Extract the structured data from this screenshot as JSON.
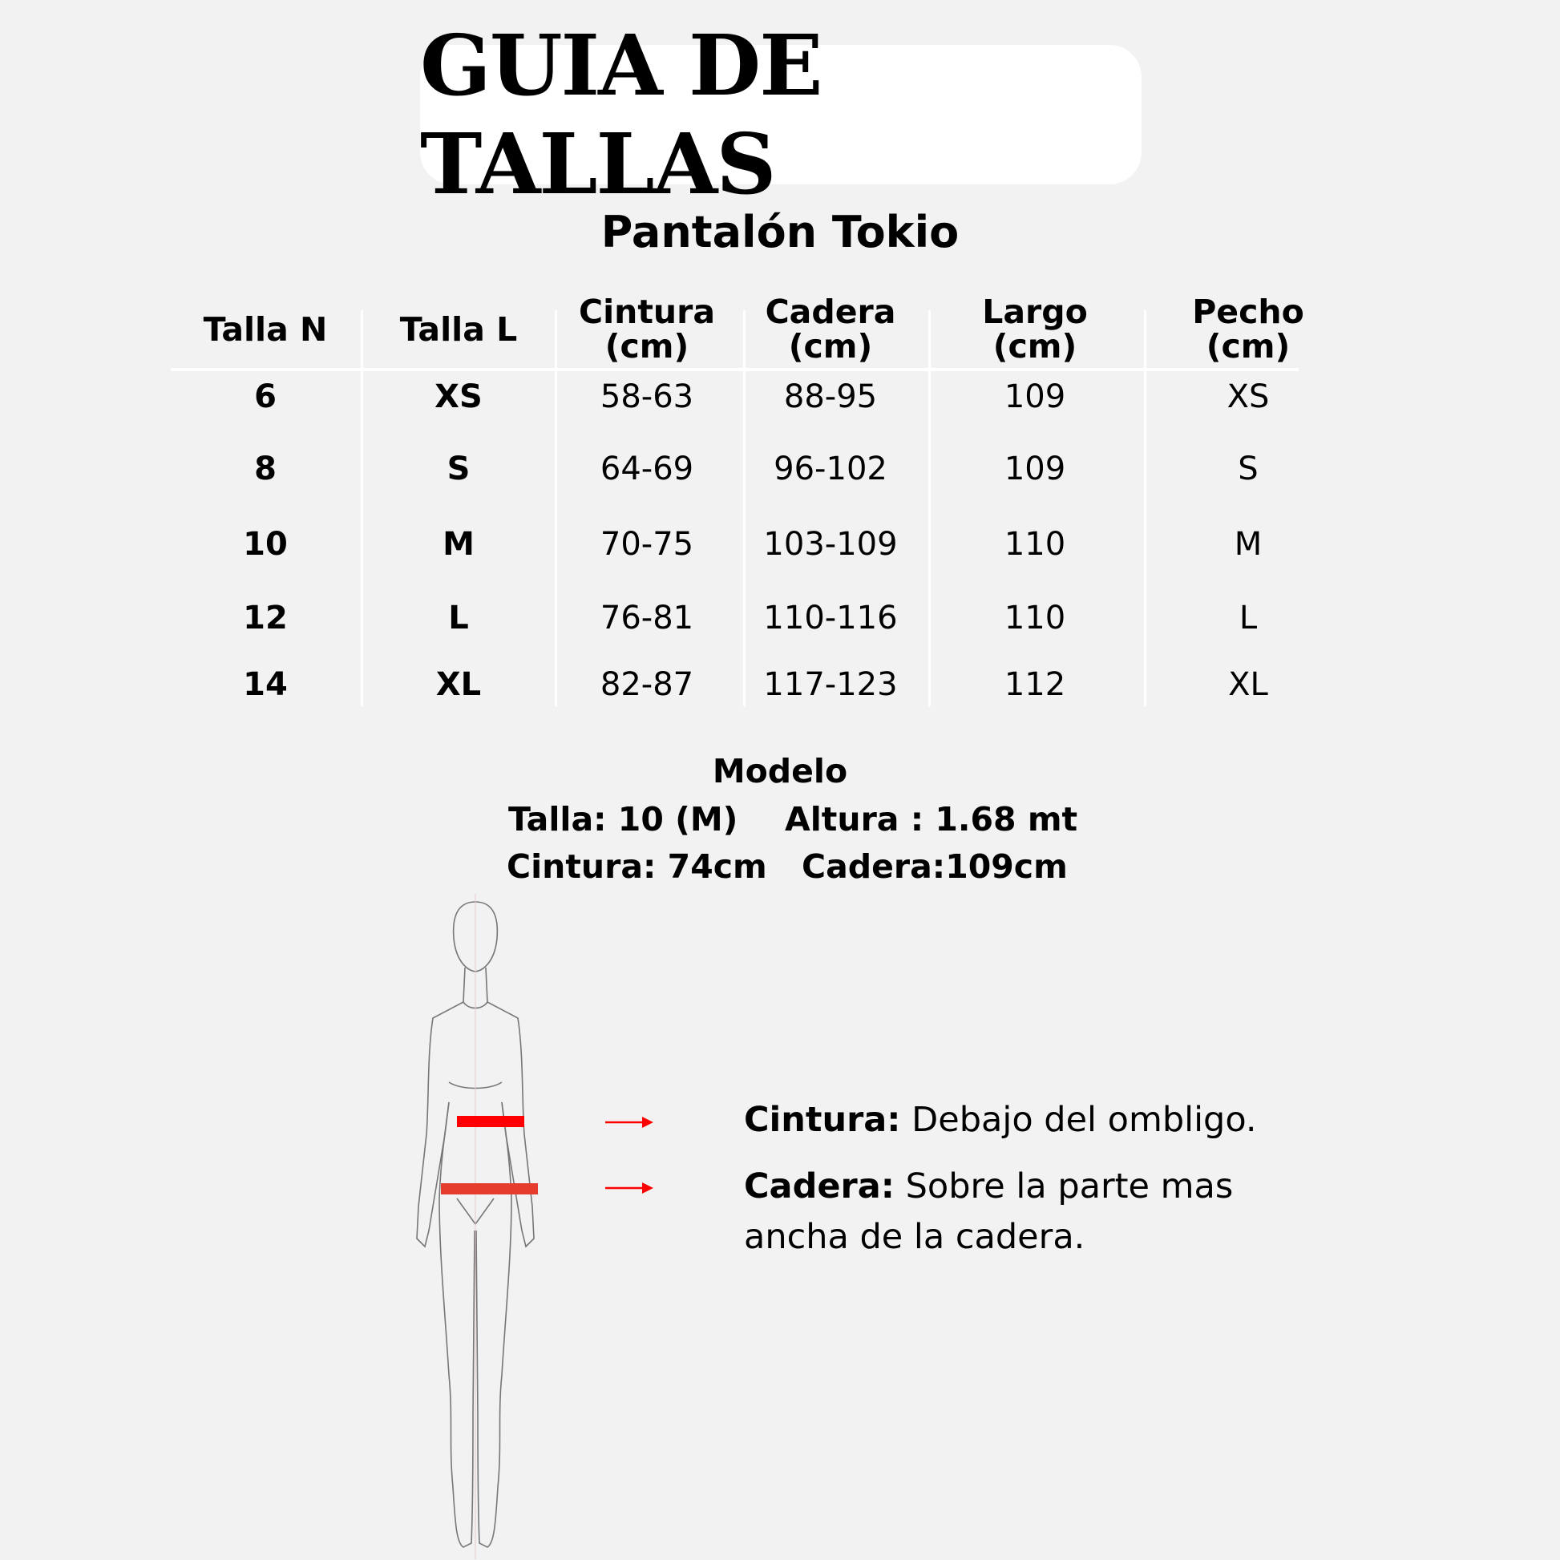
{
  "title": "GUIA DE TALLAS",
  "subtitle": "Pantalón Tokio",
  "table": {
    "headers": [
      {
        "l1": "Talla N",
        "l2": ""
      },
      {
        "l1": "Talla L",
        "l2": ""
      },
      {
        "l1": "Cintura",
        "l2": "(cm)"
      },
      {
        "l1": "Cadera",
        "l2": "(cm)"
      },
      {
        "l1": "Largo",
        "l2": "(cm)"
      },
      {
        "l1": "Pecho",
        "l2": "(cm)"
      }
    ],
    "rows": [
      [
        "6",
        "XS",
        "58-63",
        "88-95",
        "109",
        "XS"
      ],
      [
        "8",
        "S",
        "64-69",
        "96-102",
        "109",
        "S"
      ],
      [
        "10",
        "M",
        "70-75",
        "103-109",
        "110",
        "M"
      ],
      [
        "12",
        "L",
        "76-81",
        "110-116",
        "110",
        "L"
      ],
      [
        "14",
        "XL",
        "82-87",
        "117-123",
        "112",
        "XL"
      ]
    ]
  },
  "model": {
    "heading": "Modelo",
    "talla": "Talla: 10 (M)",
    "altura": "Altura : 1.68 mt",
    "cintura": "Cintura: 74cm",
    "cadera": "Cadera:109cm"
  },
  "legend": {
    "waist_label": "Cintura:",
    "waist_text": " Debajo del ombligo.",
    "hip_label": "Cadera:",
    "hip_text": " Sobre la parte mas",
    "hip_text2": "ancha de la cadera."
  },
  "colors": {
    "waist_band": "#ff0000",
    "hip_band": "#e53c2e",
    "arrow": "#ff0000",
    "background": "#f2f2f2"
  }
}
